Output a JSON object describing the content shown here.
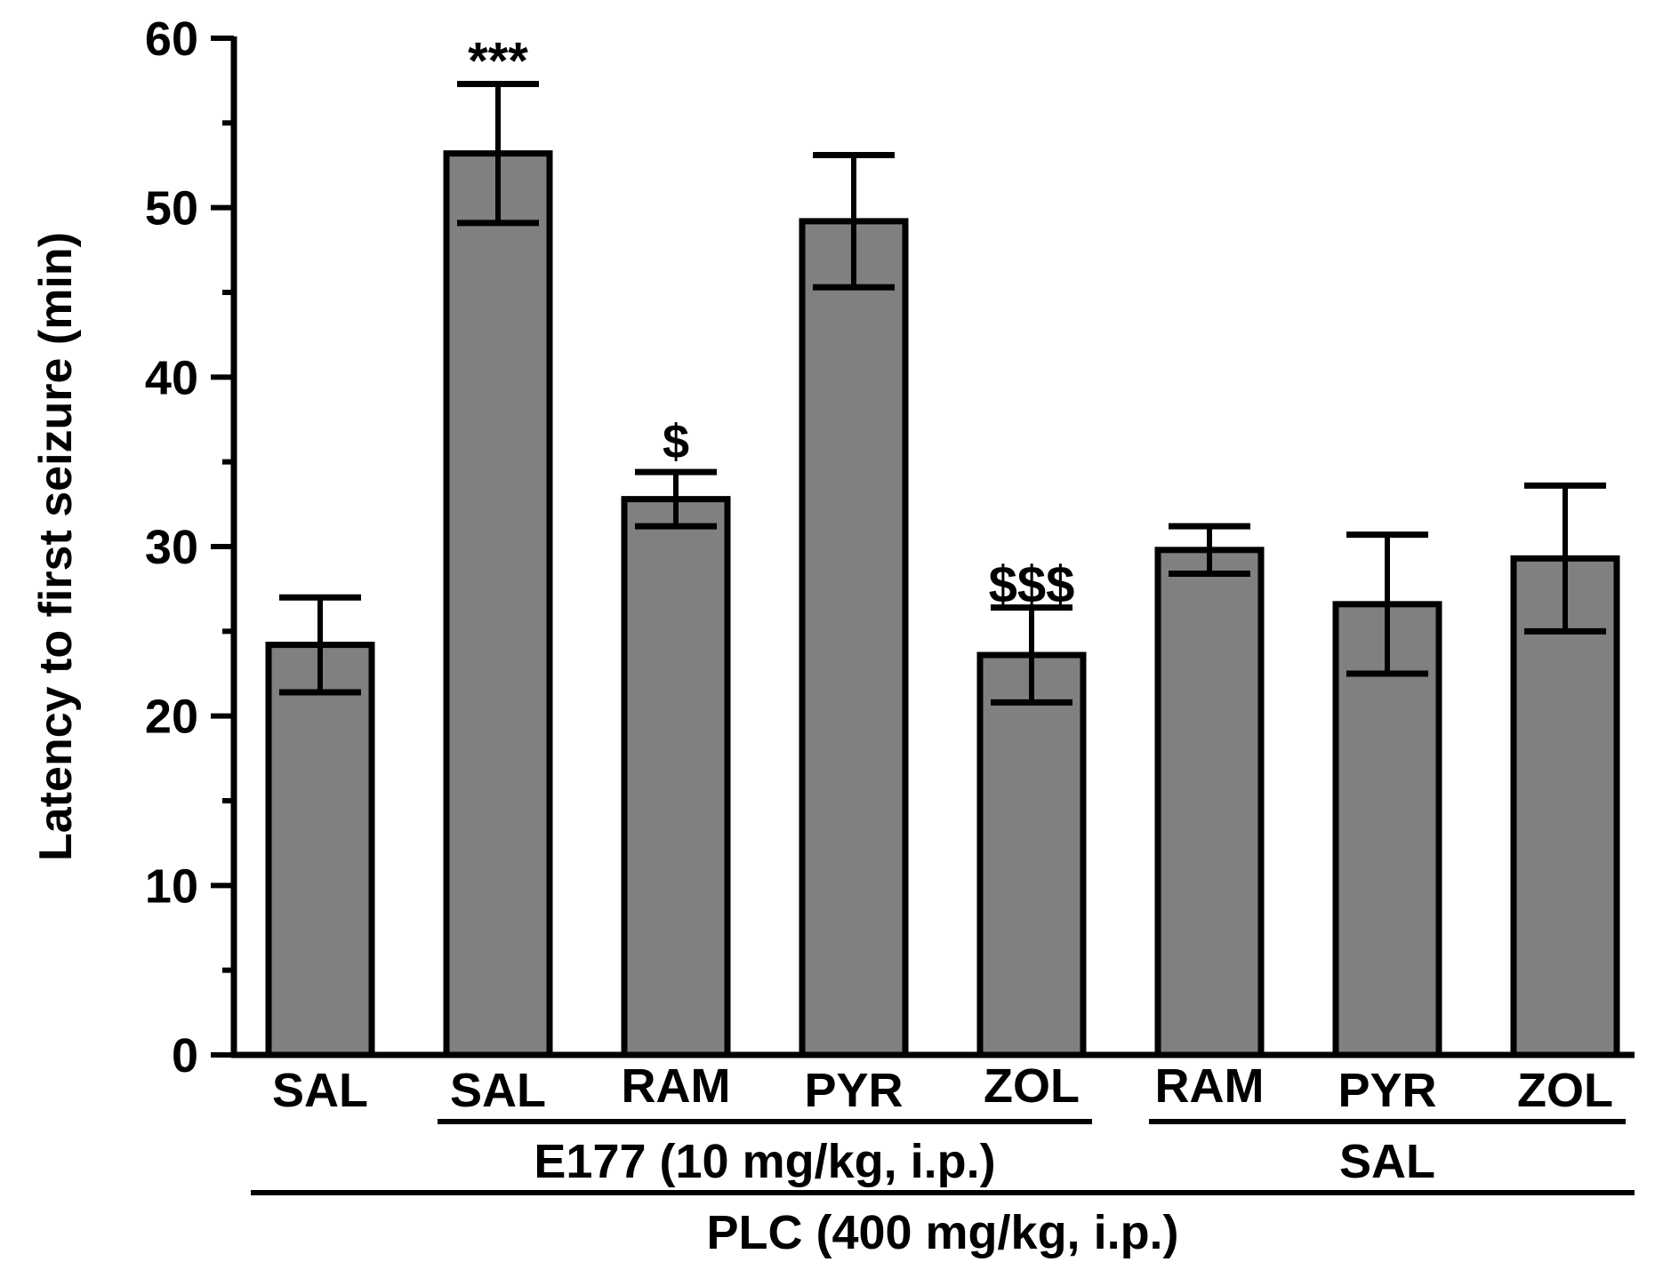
{
  "chart_data": {
    "type": "bar",
    "title": "",
    "xlabel": "",
    "ylabel": "Latency to first seizure (min)",
    "ylim": [
      0,
      60
    ],
    "yticks": [
      0,
      10,
      20,
      30,
      40,
      50,
      60
    ],
    "ytick_labels": [
      "0",
      "10",
      "20",
      "30",
      "40",
      "50",
      "60"
    ],
    "categories": [
      "SAL",
      "SAL",
      "RAM",
      "PYR",
      "ZOL",
      "RAM",
      "PYR",
      "ZOL"
    ],
    "values": [
      24.2,
      53.2,
      32.8,
      49.2,
      23.6,
      29.8,
      26.6,
      29.3
    ],
    "errors": [
      2.8,
      4.1,
      1.6,
      3.9,
      2.8,
      1.4,
      4.1,
      4.3
    ],
    "annotations": [
      "",
      "***",
      "",
      "",
      "$$$",
      "",
      "",
      ""
    ],
    "annotation_extra": [
      {
        "bar": 2,
        "text": "$"
      }
    ],
    "groups": [
      {
        "label": "E177 (10 mg/kg, i.p.)",
        "from": 1,
        "to": 4,
        "level": 1
      },
      {
        "label": "SAL",
        "from": 5,
        "to": 7,
        "level": 1
      },
      {
        "label": "PLC (400 mg/kg, i.p.)",
        "from": 0,
        "to": 7,
        "level": 2
      }
    ],
    "bar_color": "#808080",
    "edge_color": "#000000"
  }
}
